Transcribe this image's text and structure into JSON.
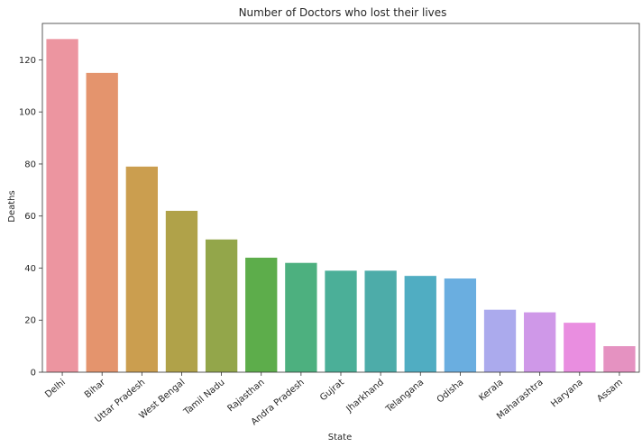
{
  "chart_data": {
    "type": "bar",
    "title": "Number of Doctors who lost their lives",
    "xlabel": "State",
    "ylabel": "Deaths",
    "ylim": [
      0,
      134
    ],
    "yticks": [
      0,
      20,
      40,
      60,
      80,
      100,
      120
    ],
    "grid": false,
    "categories": [
      "Delhi",
      "Bihar",
      "Uttar Pradesh",
      "West Bengal",
      "Tamil Nadu",
      "Rajasthan",
      "Andra Pradesh",
      "Gujrat",
      "Jharkhand",
      "Telangana",
      "Odisha",
      "Kerala",
      "Maharashtra",
      "Haryana",
      "Assam"
    ],
    "values": [
      128,
      115,
      79,
      62,
      51,
      44,
      42,
      39,
      39,
      37,
      36,
      24,
      23,
      19,
      10
    ],
    "colors": [
      "#ec95a0",
      "#e4946d",
      "#cb9e4f",
      "#b0a249",
      "#93a64a",
      "#5dad4b",
      "#4db07f",
      "#4baf98",
      "#4daca9",
      "#50adc2",
      "#6aaee0",
      "#abaaed",
      "#cf98e8",
      "#e98ee0",
      "#e592c1"
    ]
  }
}
